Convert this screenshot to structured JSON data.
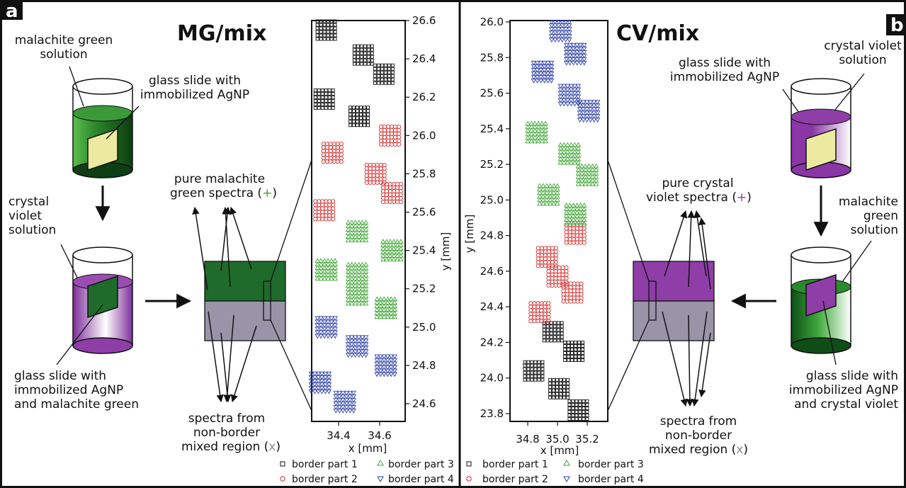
{
  "panel_a": {
    "letter": "a",
    "title": "MG/mix",
    "solution_top": [
      "malachite green",
      "solution"
    ],
    "slide_label": [
      "glass slide with",
      "immobilized AgNP"
    ],
    "solution_second": [
      "crystal",
      "violet",
      "solution"
    ],
    "slide_label_bottom": [
      "glass slide with",
      "immobilized AgNP",
      "and malachite green"
    ],
    "pure_label": [
      "pure malachite",
      "green spectra ("
    ],
    "pure_symbol": "+",
    "pure_close": ")",
    "mixed_label": [
      "spectra from",
      "non-border",
      "mixed region ("
    ],
    "mixed_symbol": "x",
    "mixed_close": ")"
  },
  "panel_b": {
    "letter": "b",
    "title": "CV/mix",
    "solution_top": [
      "crystal violet",
      "solution"
    ],
    "slide_label": [
      "glass slide with",
      "immobilized AgNP"
    ],
    "solution_second": [
      "malachite",
      "green",
      "solution"
    ],
    "slide_label_bottom": [
      "glass slide with",
      "immobilized AgNP",
      "and crystal violet"
    ],
    "pure_label": [
      "pure crystal",
      "violet spectra ("
    ],
    "pure_symbol": "+",
    "pure_close": ")",
    "mixed_label": [
      "spectra from",
      "non-border",
      "mixed region ("
    ],
    "mixed_symbol": "x",
    "mixed_close": ")"
  },
  "colors": {
    "malachite_green": "#1f6b2b",
    "crystal_violet": "#8e3ea6",
    "mixed_gray": "#9a94a8",
    "slide_yellow": "#eceaa0",
    "border_part_1": "#111111",
    "border_part_2": "#d62d2d",
    "border_part_3": "#3fa535",
    "border_part_4": "#2b3fa6",
    "plus_green": "#3fa535",
    "plus_violet": "#8e3ea6",
    "x_gray": "#8a8a8a"
  },
  "chart_data": [
    {
      "type": "scatter",
      "title": "",
      "xlabel": "x [mm]",
      "ylabel": "y [mm]",
      "xlim": [
        34.25,
        34.75
      ],
      "ylim": [
        24.5,
        26.6
      ],
      "xticks": [
        "34.4",
        "34.6"
      ],
      "xtick_values": [
        34.4,
        34.6
      ],
      "yticks": [
        "24.6",
        "24.8",
        "25.0",
        "25.2",
        "25.4",
        "25.6",
        "25.8",
        "26.0",
        "26.2",
        "26.4",
        "26.6"
      ],
      "ytick_values": [
        24.6,
        24.8,
        25.0,
        25.2,
        25.4,
        25.6,
        25.8,
        26.0,
        26.2,
        26.4,
        26.6
      ],
      "y_axis_side": "right",
      "series": [
        {
          "name": "border part 1",
          "marker": "square",
          "clusters": [
            [
              34.34,
              26.55
            ],
            [
              34.52,
              26.42
            ],
            [
              34.62,
              26.32
            ],
            [
              34.33,
              26.19
            ],
            [
              34.5,
              26.1
            ]
          ]
        },
        {
          "name": "border part 2",
          "marker": "circle",
          "clusters": [
            [
              34.65,
              26.0
            ],
            [
              34.37,
              25.91
            ],
            [
              34.58,
              25.8
            ],
            [
              34.66,
              25.7
            ],
            [
              34.33,
              25.61
            ]
          ]
        },
        {
          "name": "border part 3",
          "marker": "triangle-up",
          "clusters": [
            [
              34.49,
              25.5
            ],
            [
              34.66,
              25.4
            ],
            [
              34.34,
              25.3
            ],
            [
              34.49,
              25.28
            ],
            [
              34.49,
              25.17
            ],
            [
              34.63,
              25.1
            ]
          ]
        },
        {
          "name": "border part 4",
          "marker": "triangle-down",
          "clusters": [
            [
              34.34,
              25.0
            ],
            [
              34.49,
              24.9
            ],
            [
              34.63,
              24.8
            ],
            [
              34.31,
              24.71
            ],
            [
              34.43,
              24.61
            ]
          ]
        }
      ]
    },
    {
      "type": "scatter",
      "title": "",
      "xlabel": "x [mm]",
      "ylabel": "y [mm]",
      "xlim": [
        34.78,
        35.38
      ],
      "ylim": [
        23.72,
        26.0
      ],
      "xticks": [
        "34.8",
        "35.0",
        "35.2"
      ],
      "xtick_values": [
        34.8,
        35.0,
        35.2
      ],
      "yticks": [
        "23.8",
        "24.0",
        "24.2",
        "24.4",
        "24.6",
        "24.8",
        "25.0",
        "25.2",
        "25.4",
        "25.6",
        "25.8",
        "26.0"
      ],
      "ytick_values": [
        23.8,
        24.0,
        24.2,
        24.4,
        24.6,
        24.8,
        25.0,
        25.2,
        25.4,
        25.6,
        25.8,
        26.0
      ],
      "y_axis_side": "left",
      "series": [
        {
          "name": "border part 1",
          "marker": "square",
          "clusters": [
            [
              34.97,
              24.26
            ],
            [
              35.11,
              24.15
            ],
            [
              34.84,
              24.04
            ],
            [
              35.01,
              23.94
            ],
            [
              35.14,
              23.82
            ]
          ]
        },
        {
          "name": "border part 2",
          "marker": "circle",
          "clusters": [
            [
              35.12,
              24.81
            ],
            [
              34.93,
              24.68
            ],
            [
              35.0,
              24.57
            ],
            [
              35.1,
              24.48
            ],
            [
              34.88,
              24.37
            ]
          ]
        },
        {
          "name": "border part 3",
          "marker": "triangle-up",
          "clusters": [
            [
              34.86,
              25.38
            ],
            [
              35.08,
              25.26
            ],
            [
              35.2,
              25.14
            ],
            [
              34.94,
              25.03
            ],
            [
              35.12,
              24.92
            ]
          ]
        },
        {
          "name": "border part 4",
          "marker": "triangle-down",
          "clusters": [
            [
              35.02,
              25.95
            ],
            [
              34.9,
              25.72
            ],
            [
              35.12,
              25.82
            ],
            [
              35.08,
              25.59
            ],
            [
              35.21,
              25.5
            ]
          ]
        }
      ]
    }
  ],
  "legend": {
    "part1": "border part 1",
    "part2": "border part 2",
    "part3": "border part 3",
    "part4": "border part 4"
  }
}
